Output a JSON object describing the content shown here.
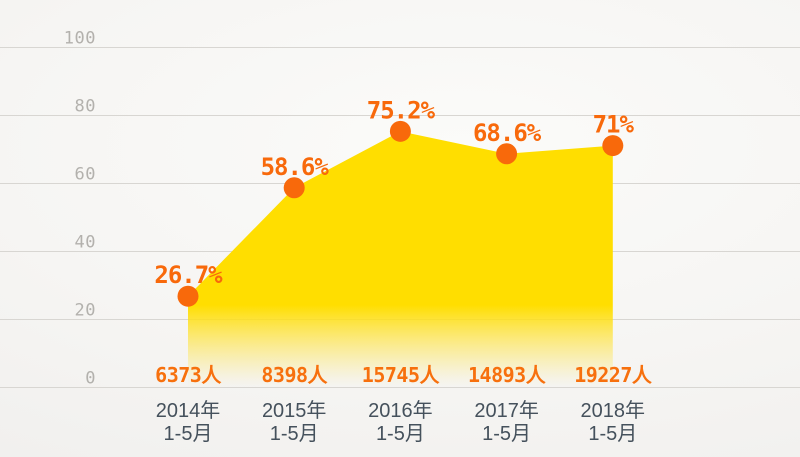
{
  "chart_data": {
    "type": "area",
    "title": "",
    "xlabel": "",
    "ylabel": "",
    "ylim": [
      0,
      100
    ],
    "grid": true,
    "legend": "none",
    "y_axis": {
      "ticks": [
        100,
        80,
        60,
        40,
        20,
        0
      ]
    },
    "categories": [
      "2014年 1-5月",
      "2015年 1-5月",
      "2016年 1-5月",
      "2017年 1-5月",
      "2018年 1-5月"
    ],
    "points": [
      {
        "category_line1": "2014年",
        "category_line2": "1-5月",
        "percent": 26.7,
        "percent_label": "26.7%",
        "count": 6373,
        "count_label": "6373人"
      },
      {
        "category_line1": "2015年",
        "category_line2": "1-5月",
        "percent": 58.6,
        "percent_label": "58.6%",
        "count": 8398,
        "count_label": "8398人"
      },
      {
        "category_line1": "2016年",
        "category_line2": "1-5月",
        "percent": 75.2,
        "percent_label": "75.2%",
        "count": 15745,
        "count_label": "15745人"
      },
      {
        "category_line1": "2017年",
        "category_line2": "1-5月",
        "percent": 68.6,
        "percent_label": "68.6%",
        "count": 14893,
        "count_label": "14893人"
      },
      {
        "category_line1": "2018年",
        "category_line2": "1-5月",
        "percent": 71,
        "percent_label": "71%",
        "count": 19227,
        "count_label": "19227人"
      }
    ],
    "colors": {
      "area_fill": "#FFDE00",
      "marker": "#F8690B",
      "percent_text": "#F8690B",
      "count_text": "#F7700D",
      "grid_line": "#D8D6D2",
      "tick_text": "#B3B1AD",
      "category_text": "#45515C"
    }
  }
}
